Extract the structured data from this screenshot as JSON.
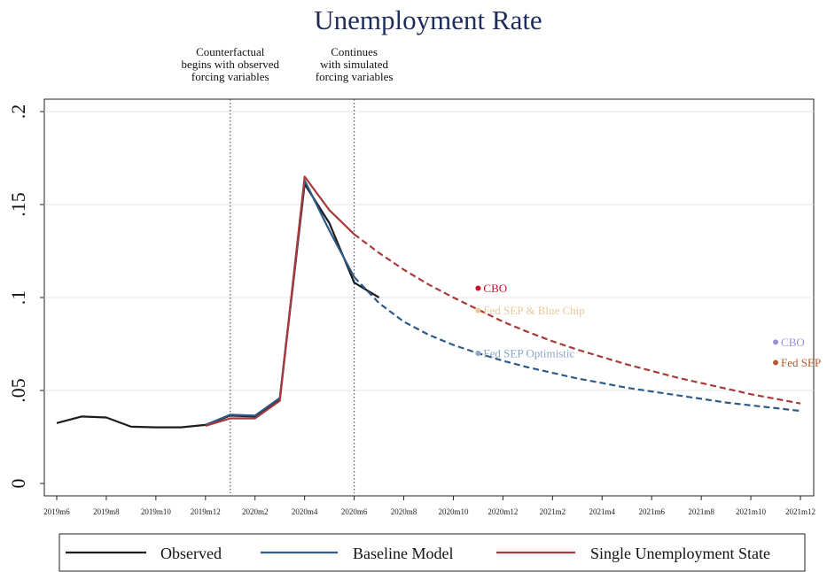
{
  "chart_data": {
    "type": "line",
    "title": "Unemployment Rate",
    "xlabel": "",
    "ylabel": "",
    "x_tick_labels": [
      "2019m6",
      "2019m8",
      "2019m10",
      "2019m12",
      "2020m2",
      "2020m4",
      "2020m6",
      "2020m8",
      "2020m10",
      "2020m12",
      "2021m2",
      "2021m4",
      "2021m6",
      "2021m8",
      "2021m10",
      "2021m12"
    ],
    "y_ticks": [
      0,
      0.05,
      0.1,
      0.15,
      0.2
    ],
    "y_tick_labels": [
      "0",
      ".05",
      ".1",
      ".15",
      ".2"
    ],
    "xlim": [
      "2019m6",
      "2021m12"
    ],
    "ylim": [
      0,
      0.2
    ],
    "grid": "horizontal",
    "legend_position": "bottom",
    "series": [
      {
        "name": "Observed",
        "color": "#1c1c1c",
        "style": "solid",
        "x": [
          "2019m6",
          "2019m7",
          "2019m8",
          "2019m9",
          "2019m10",
          "2019m11",
          "2019m12",
          "2020m1",
          "2020m2",
          "2020m3",
          "2020m4",
          "2020m5",
          "2020m6",
          "2020m7"
        ],
        "values": [
          0.0325,
          0.036,
          0.0355,
          0.0305,
          0.0302,
          0.0302,
          0.0315,
          0.0365,
          0.036,
          0.0455,
          0.161,
          0.14,
          0.108,
          0.1
        ]
      },
      {
        "name": "Baseline Model",
        "color": "#2e5a88",
        "style": "solid",
        "x": [
          "2019m12",
          "2020m1",
          "2020m2",
          "2020m3",
          "2020m4",
          "2020m5",
          "2020m6"
        ],
        "values": [
          0.0315,
          0.037,
          0.0365,
          0.046,
          0.163,
          0.136,
          0.111
        ]
      },
      {
        "name": "Baseline Model (simulated)",
        "color": "#2e5a88",
        "style": "dashed",
        "x": [
          "2020m6",
          "2020m7",
          "2020m8",
          "2020m9",
          "2020m10",
          "2020m11",
          "2020m12",
          "2021m1",
          "2021m2",
          "2021m3",
          "2021m4",
          "2021m5",
          "2021m6",
          "2021m7",
          "2021m8",
          "2021m9",
          "2021m10",
          "2021m11",
          "2021m12"
        ],
        "values": [
          0.111,
          0.097,
          0.087,
          0.08,
          0.0745,
          0.07,
          0.066,
          0.0625,
          0.0595,
          0.0565,
          0.054,
          0.0515,
          0.0495,
          0.0475,
          0.0455,
          0.0435,
          0.042,
          0.0405,
          0.039
        ]
      },
      {
        "name": "Single Unemployment State",
        "color": "#a83a3a",
        "style": "solid",
        "x": [
          "2019m12",
          "2020m1",
          "2020m2",
          "2020m3",
          "2020m4",
          "2020m5",
          "2020m6"
        ],
        "values": [
          0.031,
          0.035,
          0.035,
          0.0445,
          0.165,
          0.147,
          0.134
        ]
      },
      {
        "name": "Single Unemployment State (simulated)",
        "color": "#a83a3a",
        "style": "dashed",
        "x": [
          "2020m6",
          "2020m7",
          "2020m8",
          "2020m9",
          "2020m10",
          "2020m11",
          "2020m12",
          "2021m1",
          "2021m2",
          "2021m3",
          "2021m4",
          "2021m5",
          "2021m6",
          "2021m7",
          "2021m8",
          "2021m9",
          "2021m10",
          "2021m11",
          "2021m12"
        ],
        "values": [
          0.134,
          0.124,
          0.115,
          0.107,
          0.1,
          0.0935,
          0.087,
          0.0815,
          0.0765,
          0.072,
          0.068,
          0.064,
          0.0605,
          0.057,
          0.054,
          0.051,
          0.048,
          0.0455,
          0.043
        ]
      }
    ],
    "forecast_points": [
      {
        "label": "CBO",
        "x": "2020m11",
        "y": 0.105,
        "color": "#c8102e"
      },
      {
        "label": "Fed SEP & Blue Chip",
        "x": "2020m11",
        "y": 0.093,
        "color": "#e8c89a"
      },
      {
        "label": "Fed SEP Optimistic",
        "x": "2020m11",
        "y": 0.07,
        "color": "#8aa6c4"
      },
      {
        "label": "CBO",
        "x": "2021m11",
        "y": 0.076,
        "color": "#9b8fd8"
      },
      {
        "label": "Fed SEP",
        "x": "2021m11",
        "y": 0.065,
        "color": "#b55a2a"
      }
    ],
    "annotations": [
      {
        "x": "2020m1",
        "lines": [
          "Counterfactual",
          "begins with observed",
          "forcing variables"
        ]
      },
      {
        "x": "2020m6",
        "lines": [
          "Continues",
          "with simulated",
          "forcing variables"
        ]
      }
    ],
    "legend": [
      {
        "label": "Observed",
        "color": "#1c1c1c"
      },
      {
        "label": "Baseline Model",
        "color": "#2e5a88"
      },
      {
        "label": "Single Unemployment State",
        "color": "#a83a3a"
      }
    ]
  }
}
